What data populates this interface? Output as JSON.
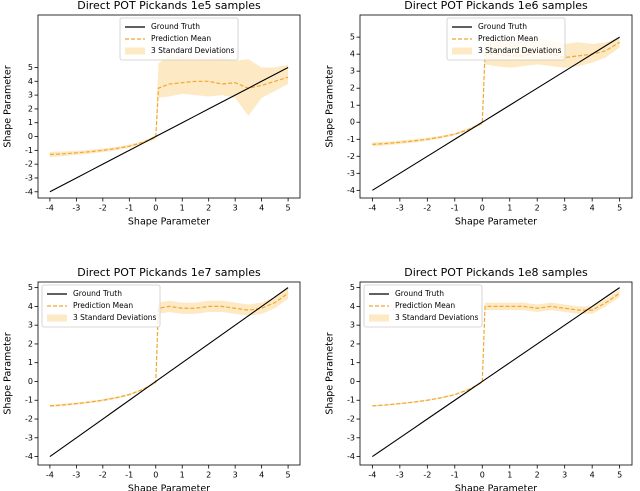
{
  "chart_data": [
    {
      "type": "line",
      "title": "Direct POT Pickands 1e5 samples",
      "xlabel": "Shape Parameter",
      "ylabel": "Shape Parameter",
      "x": [
        -4,
        -3.5,
        -3,
        -2.5,
        -2,
        -1.5,
        -1,
        -0.5,
        0,
        0.1,
        0.5,
        1,
        1.5,
        2,
        2.5,
        3,
        3.5,
        4,
        4.5,
        5
      ],
      "series": [
        {
          "name": "Ground Truth",
          "color": "#000000",
          "style": "solid",
          "values": [
            -4,
            -3.5,
            -3,
            -2.5,
            -2,
            -1.5,
            -1,
            -0.5,
            0,
            0.1,
            0.5,
            1,
            1.5,
            2,
            2.5,
            3,
            3.5,
            4,
            4.5,
            5
          ]
        },
        {
          "name": "Prediction Mean",
          "color": "#f0a830",
          "style": "dashed",
          "values": [
            -1.3,
            -1.25,
            -1.18,
            -1.1,
            -1.0,
            -0.87,
            -0.7,
            -0.43,
            -0.05,
            3.5,
            3.8,
            3.9,
            4.0,
            4.0,
            3.8,
            3.9,
            3.5,
            3.7,
            4.0,
            4.3
          ]
        },
        {
          "name": "3 Standard Deviations",
          "color": "#fde9c4",
          "style": "band",
          "lower": [
            -1.5,
            -1.42,
            -1.33,
            -1.24,
            -1.13,
            -0.99,
            -0.81,
            -0.53,
            -0.2,
            2.8,
            2.9,
            3.1,
            3.0,
            2.9,
            3.0,
            2.8,
            1.5,
            2.8,
            3.3,
            3.8
          ],
          "upper": [
            -1.1,
            -1.08,
            -1.03,
            -0.96,
            -0.87,
            -0.75,
            -0.59,
            -0.33,
            0.1,
            5.3,
            5.9,
            5.8,
            5.8,
            5.7,
            5.8,
            5.5,
            5.6,
            5.0,
            5.0,
            5.2
          ]
        }
      ],
      "xlim": [
        -4.45,
        5.45
      ],
      "ylim": [
        -4.45,
        8.8
      ],
      "xticks": [
        -4,
        -3,
        -2,
        -1,
        0,
        1,
        2,
        3,
        4,
        5
      ],
      "yticks": [
        -4,
        -3,
        -2,
        -1,
        0,
        1,
        2,
        3,
        4,
        5
      ],
      "legend": "upper center"
    },
    {
      "type": "line",
      "title": "Direct POT Pickands 1e6 samples",
      "xlabel": "Shape Parameter",
      "ylabel": "Shape Parameter",
      "x": [
        -4,
        -3.5,
        -3,
        -2.5,
        -2,
        -1.5,
        -1,
        -0.5,
        0,
        0.1,
        0.5,
        1,
        1.5,
        2,
        2.5,
        3,
        3.5,
        4,
        4.5,
        5
      ],
      "series": [
        {
          "name": "Ground Truth",
          "color": "#000000",
          "style": "solid",
          "values": [
            -4,
            -3.5,
            -3,
            -2.5,
            -2,
            -1.5,
            -1,
            -0.5,
            0,
            0.1,
            0.5,
            1,
            1.5,
            2,
            2.5,
            3,
            3.5,
            4,
            4.5,
            5
          ]
        },
        {
          "name": "Prediction Mean",
          "color": "#f0a830",
          "style": "dashed",
          "values": [
            -1.3,
            -1.25,
            -1.18,
            -1.1,
            -1.0,
            -0.87,
            -0.7,
            -0.43,
            -0.05,
            4.0,
            4.0,
            3.9,
            3.9,
            4.1,
            4.0,
            3.8,
            3.9,
            4.0,
            4.2,
            4.7
          ]
        },
        {
          "name": "3 Standard Deviations",
          "color": "#fde9c4",
          "style": "band",
          "lower": [
            -1.42,
            -1.36,
            -1.28,
            -1.2,
            -1.09,
            -0.95,
            -0.77,
            -0.5,
            -0.12,
            3.4,
            3.3,
            3.2,
            3.3,
            3.4,
            3.3,
            3.2,
            3.3,
            3.5,
            3.8,
            4.4
          ],
          "upper": [
            -1.18,
            -1.14,
            -1.08,
            -1.0,
            -0.91,
            -0.79,
            -0.63,
            -0.36,
            0.05,
            4.7,
            4.9,
            4.8,
            4.7,
            4.9,
            4.8,
            4.6,
            4.7,
            4.6,
            4.7,
            5.0
          ]
        }
      ],
      "xlim": [
        -4.45,
        5.45
      ],
      "ylim": [
        -4.45,
        6.3
      ],
      "xticks": [
        -4,
        -3,
        -2,
        -1,
        0,
        1,
        2,
        3,
        4,
        5
      ],
      "yticks": [
        -4,
        -3,
        -2,
        -1,
        0,
        1,
        2,
        3,
        4,
        5
      ],
      "legend": "upper center"
    },
    {
      "type": "line",
      "title": "Direct POT Pickands 1e7 samples",
      "xlabel": "Shape Parameter",
      "ylabel": "Shape Parameter",
      "x": [
        -4,
        -3.5,
        -3,
        -2.5,
        -2,
        -1.5,
        -1,
        -0.5,
        0,
        0.1,
        0.5,
        1,
        1.5,
        2,
        2.5,
        3,
        3.5,
        4,
        4.5,
        5
      ],
      "series": [
        {
          "name": "Ground Truth",
          "color": "#000000",
          "style": "solid",
          "values": [
            -4,
            -3.5,
            -3,
            -2.5,
            -2,
            -1.5,
            -1,
            -0.5,
            0,
            0.1,
            0.5,
            1,
            1.5,
            2,
            2.5,
            3,
            3.5,
            4,
            4.5,
            5
          ]
        },
        {
          "name": "Prediction Mean",
          "color": "#f0a830",
          "style": "dashed",
          "values": [
            -1.3,
            -1.25,
            -1.18,
            -1.1,
            -1.0,
            -0.87,
            -0.7,
            -0.43,
            -0.05,
            3.9,
            4.0,
            3.9,
            3.9,
            4.0,
            4.0,
            3.9,
            3.8,
            3.9,
            4.2,
            4.7
          ]
        },
        {
          "name": "3 Standard Deviations",
          "color": "#fde9c4",
          "style": "band",
          "lower": [
            -1.36,
            -1.31,
            -1.24,
            -1.16,
            -1.06,
            -0.93,
            -0.75,
            -0.48,
            -0.1,
            3.6,
            3.7,
            3.6,
            3.6,
            3.7,
            3.7,
            3.6,
            3.5,
            3.6,
            3.9,
            4.4
          ],
          "upper": [
            -1.24,
            -1.19,
            -1.12,
            -1.04,
            -0.94,
            -0.81,
            -0.65,
            -0.38,
            0.0,
            4.2,
            4.3,
            4.2,
            4.2,
            4.3,
            4.3,
            4.2,
            4.1,
            4.2,
            4.5,
            5.0
          ]
        }
      ],
      "xlim": [
        -4.45,
        5.45
      ],
      "ylim": [
        -4.45,
        5.3
      ],
      "xticks": [
        -4,
        -3,
        -2,
        -1,
        0,
        1,
        2,
        3,
        4,
        5
      ],
      "yticks": [
        -4,
        -3,
        -2,
        -1,
        0,
        1,
        2,
        3,
        4,
        5
      ],
      "legend": "upper left"
    },
    {
      "type": "line",
      "title": "Direct POT Pickands 1e8 samples",
      "xlabel": "Shape Parameter",
      "ylabel": "Shape Parameter",
      "x": [
        -4,
        -3.5,
        -3,
        -2.5,
        -2,
        -1.5,
        -1,
        -0.5,
        0,
        0.1,
        0.5,
        1,
        1.5,
        2,
        2.5,
        3,
        3.5,
        4,
        4.5,
        5
      ],
      "series": [
        {
          "name": "Ground Truth",
          "color": "#000000",
          "style": "solid",
          "values": [
            -4,
            -3.5,
            -3,
            -2.5,
            -2,
            -1.5,
            -1,
            -0.5,
            0,
            0.1,
            0.5,
            1,
            1.5,
            2,
            2.5,
            3,
            3.5,
            4,
            4.5,
            5
          ]
        },
        {
          "name": "Prediction Mean",
          "color": "#f0a830",
          "style": "dashed",
          "values": [
            -1.3,
            -1.25,
            -1.18,
            -1.1,
            -1.0,
            -0.87,
            -0.7,
            -0.43,
            -0.05,
            4.0,
            4.0,
            4.0,
            4.0,
            3.9,
            4.0,
            3.9,
            3.8,
            3.8,
            4.2,
            4.7
          ]
        },
        {
          "name": "3 Standard Deviations",
          "color": "#fde9c4",
          "style": "band",
          "lower": [
            -1.34,
            -1.29,
            -1.22,
            -1.14,
            -1.04,
            -0.91,
            -0.74,
            -0.47,
            -0.08,
            3.8,
            3.8,
            3.8,
            3.8,
            3.7,
            3.8,
            3.7,
            3.6,
            3.6,
            4.0,
            4.5
          ],
          "upper": [
            -1.26,
            -1.21,
            -1.14,
            -1.06,
            -0.96,
            -0.83,
            -0.66,
            -0.39,
            -0.02,
            4.2,
            4.2,
            4.2,
            4.2,
            4.1,
            4.2,
            4.1,
            4.0,
            4.0,
            4.4,
            4.9
          ]
        }
      ],
      "xlim": [
        -4.45,
        5.45
      ],
      "ylim": [
        -4.45,
        5.3
      ],
      "xticks": [
        -4,
        -3,
        -2,
        -1,
        0,
        1,
        2,
        3,
        4,
        5
      ],
      "yticks": [
        -4,
        -3,
        -2,
        -1,
        0,
        1,
        2,
        3,
        4,
        5
      ],
      "legend": "upper left"
    }
  ]
}
